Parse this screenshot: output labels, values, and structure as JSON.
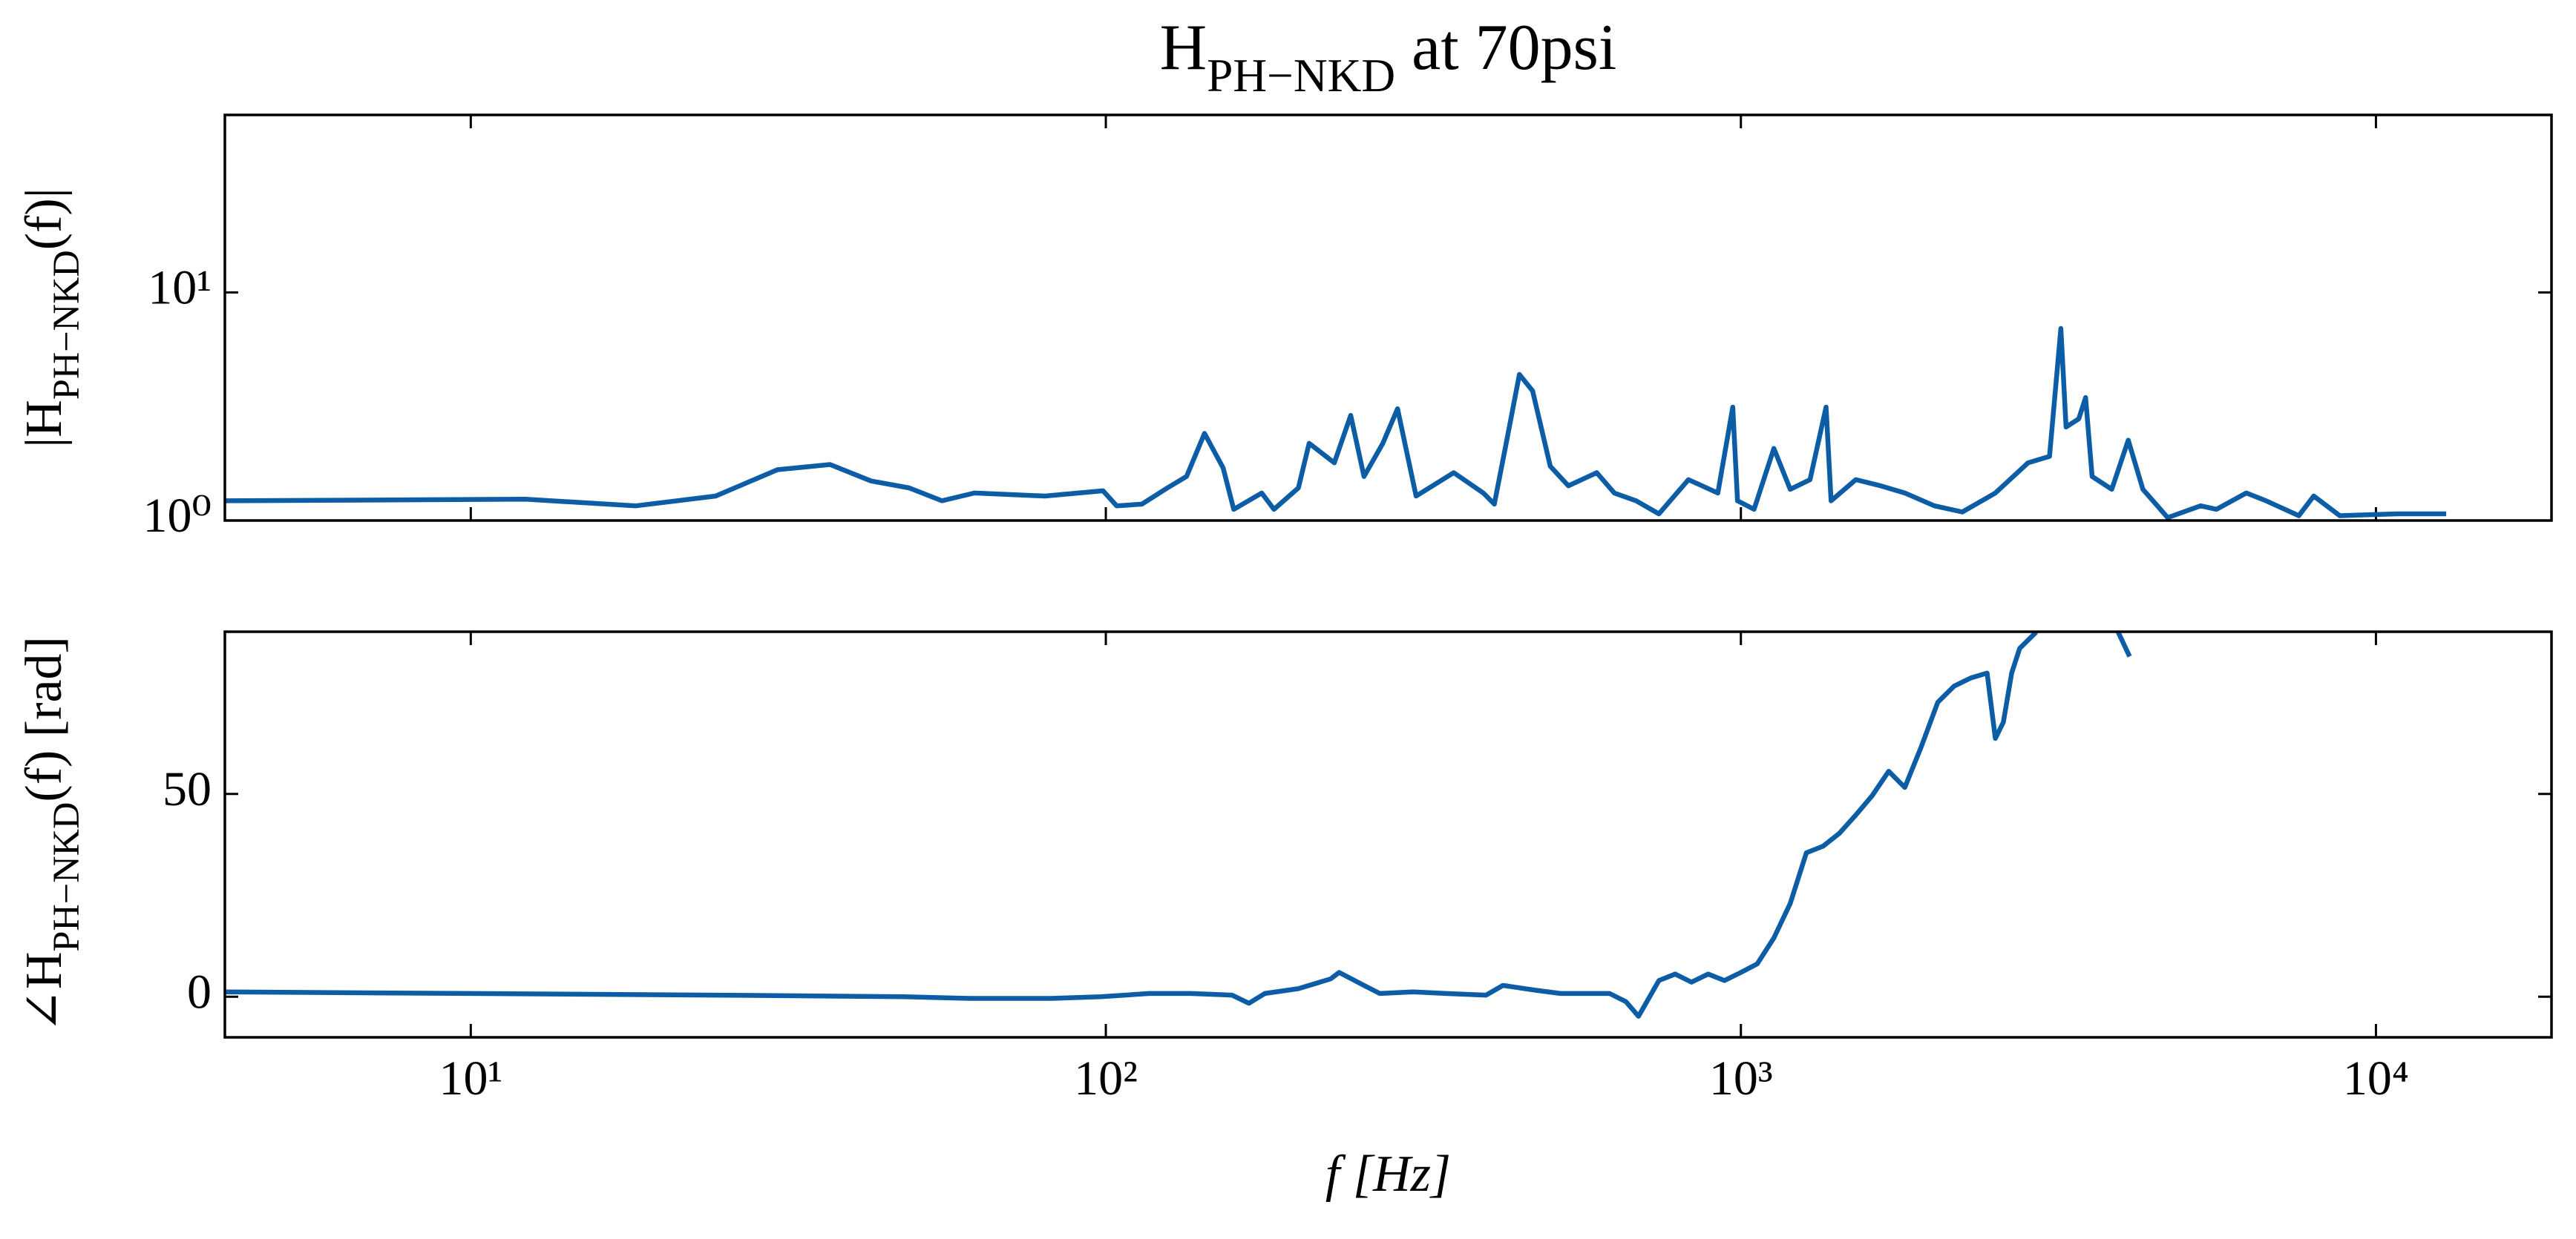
{
  "chart_data": [
    {
      "type": "line",
      "title": "H_{PH−NKD} at 70psi",
      "ylabel": "|H_{PH−NKD}(f)|",
      "xlog": true,
      "xlim": [
        4.1,
        18900
      ],
      "xticks": [
        10,
        100,
        1000,
        10000
      ],
      "ylog": true,
      "ylim": [
        1,
        60
      ],
      "yticks": [
        {
          "value": 1,
          "label": "10⁰"
        },
        {
          "value": 10,
          "label": "10¹"
        }
      ],
      "x": [
        4.1,
        12.2,
        18.2,
        24.3,
        30.4,
        36.8,
        42.7,
        49.0,
        55.2,
        62.1,
        80.2,
        99,
        104,
        114,
        125,
        134,
        143,
        153,
        159,
        176,
        184,
        201,
        209,
        229,
        243,
        255,
        273,
        288,
        308,
        353,
        393,
        409,
        427,
        448,
        470,
        501,
        535,
        593,
        632,
        684,
        743,
        827,
        920,
        971,
        988,
        1049,
        1127,
        1196,
        1285,
        1362,
        1387,
        1517,
        1660,
        1812,
        2017,
        2232,
        2516,
        2833,
        3062,
        3191,
        3251,
        3404,
        3490,
        3573,
        3837,
        4074,
        4295,
        4699,
        5296,
        5610,
        6250,
        6714,
        7561,
        7980,
        8770,
        10800,
        12900
      ],
      "series": [
        {
          "color": "#0c5da5",
          "values": [
            1.22,
            1.24,
            1.16,
            1.28,
            1.67,
            1.76,
            1.49,
            1.39,
            1.22,
            1.32,
            1.28,
            1.35,
            1.16,
            1.18,
            1.39,
            1.56,
            2.41,
            1.7,
            1.12,
            1.32,
            1.12,
            1.39,
            2.18,
            1.79,
            2.89,
            1.56,
            2.18,
            3.09,
            1.28,
            1.62,
            1.32,
            1.18,
            2.18,
            4.37,
            3.7,
            1.73,
            1.42,
            1.62,
            1.32,
            1.22,
            1.07,
            1.51,
            1.32,
            3.14,
            1.22,
            1.12,
            2.07,
            1.37,
            1.51,
            3.14,
            1.22,
            1.51,
            1.42,
            1.32,
            1.16,
            1.09,
            1.32,
            1.79,
            1.91,
            6.95,
            2.57,
            2.79,
            3.46,
            1.56,
            1.37,
            2.25,
            1.37,
            1.03,
            1.16,
            1.12,
            1.32,
            1.22,
            1.05,
            1.28,
            1.05,
            1.07,
            1.07
          ]
        }
      ]
    },
    {
      "type": "line",
      "ylabel": "∠H_{PH−NKD}(f) [rad]",
      "xlabel": "f [Hz]",
      "xlog": true,
      "xlim": [
        4.1,
        18900
      ],
      "xticks": [
        {
          "value": 10,
          "label": "10¹"
        },
        {
          "value": 100,
          "label": "10²"
        },
        {
          "value": 1000,
          "label": "10³"
        },
        {
          "value": 10000,
          "label": "10⁴"
        }
      ],
      "ylim": [
        -10,
        90
      ],
      "yticks": [
        0,
        50
      ],
      "x": [
        4.1,
        24.3,
        48.1,
        61,
        82.2,
        98.2,
        117,
        136,
        158,
        168,
        178,
        201,
        226,
        233,
        255,
        270,
        304,
        343,
        397,
        422,
        475,
        520,
        568,
        621,
        659,
        690,
        743,
        788,
        836,
        888,
        942,
        1000,
        1061,
        1127,
        1196,
        1268,
        1346,
        1429,
        1517,
        1610,
        1709,
        1812,
        1924,
        2042,
        2167,
        2301,
        2442,
        2516,
        2590,
        2669,
        2748,
        2917,
        3400,
        3927,
        4093
      ],
      "series": [
        {
          "color": "#0c5da5",
          "values": [
            1.2,
            0.4,
            0,
            -0.4,
            -0.4,
            0,
            0.8,
            0.8,
            0.4,
            -1.6,
            0.8,
            2.0,
            4.4,
            6.0,
            2.8,
            0.8,
            1.2,
            0.8,
            0.4,
            2.8,
            1.6,
            0.8,
            0.8,
            0.8,
            -1.2,
            -4.8,
            4.0,
            5.6,
            3.6,
            5.6,
            4.0,
            6.0,
            8.1,
            14.5,
            23.0,
            35.5,
            37.1,
            40.3,
            44.8,
            49.6,
            55.6,
            51.6,
            61.7,
            72.6,
            76.6,
            78.6,
            79.8,
            63.7,
            67.7,
            79.8,
            85.9,
            89.9,
            null,
            89.9,
            83.9
          ]
        }
      ]
    }
  ]
}
